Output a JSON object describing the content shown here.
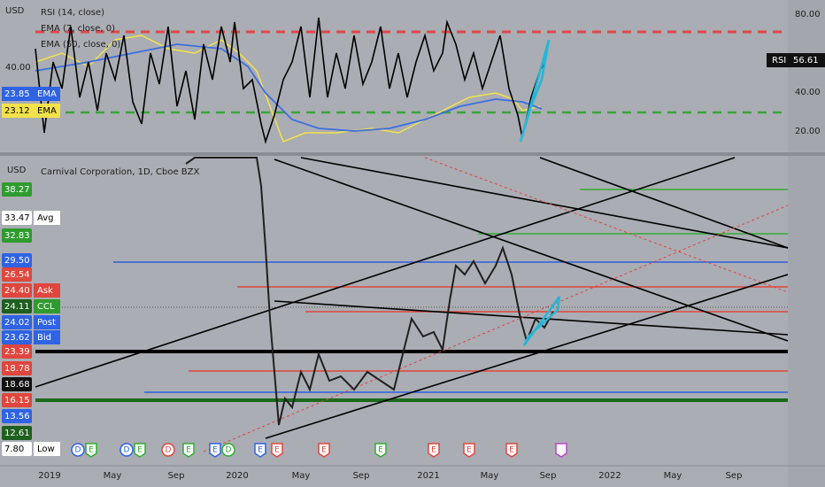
{
  "rsi_pane": {
    "legend": [
      "RSI (14, close)",
      "EMA (7, close, 0)",
      "EMA (50, close, 0)"
    ],
    "left_labels": [
      "USD",
      "40.00"
    ],
    "tags": [
      {
        "price": "23.85",
        "note": "EMA"
      },
      {
        "price": "23.12",
        "note": "EMA"
      }
    ],
    "right_labels": [
      "80.00",
      "40.00",
      "20.00"
    ],
    "rsi_tag": {
      "name": "RSI",
      "value": "56.61"
    }
  },
  "price_pane": {
    "legend": "Carnival Corporation, 1D, Cboe BZX",
    "currency": "USD",
    "tags": [
      {
        "price": "38.27"
      },
      {
        "price": "33.47",
        "note": "Avg"
      },
      {
        "price": "32.83"
      },
      {
        "price": "29.50"
      },
      {
        "price": "26.54"
      },
      {
        "price": "24.40",
        "note": "Ask"
      },
      {
        "price": "24.11",
        "note": "CCL"
      },
      {
        "price": "24.02",
        "note": "Post"
      },
      {
        "price": "23.62",
        "note": "Bid"
      },
      {
        "price": "23.39"
      },
      {
        "price": "18.78"
      },
      {
        "price": "18.68"
      },
      {
        "price": "16.15"
      },
      {
        "price": "13.56"
      },
      {
        "price": "12.61"
      },
      {
        "price": "7.80",
        "note": "Low"
      }
    ],
    "events": [
      "D",
      "E",
      "D",
      "E",
      "D",
      "E",
      "E",
      "D",
      "E",
      "E",
      "E",
      "E",
      "E",
      "E",
      "E"
    ]
  },
  "time_axis": [
    "2019",
    "May",
    "Sep",
    "2020",
    "May",
    "Sep",
    "2021",
    "May",
    "Sep",
    "2022",
    "May",
    "Sep"
  ]
}
